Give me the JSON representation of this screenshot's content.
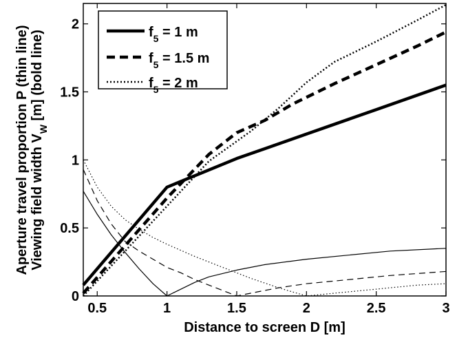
{
  "chart_data": {
    "type": "line",
    "xlabel": "Distance to screen D [m]",
    "ylabel_line1": "Aperture travel proportion P (thin line)",
    "ylabel_line2": "Viewing field width V",
    "ylabel_line2_sub": "W",
    "ylabel_line2_tail": " [m] (bold line)",
    "xlim": [
      0.4,
      3.0
    ],
    "ylim": [
      0,
      2.15
    ],
    "xticks": [
      0.5,
      1,
      1.5,
      2,
      2.5,
      3
    ],
    "xtick_labels": [
      "0.5",
      "1",
      "1.5",
      "2",
      "2.5",
      "3"
    ],
    "yticks": [
      0,
      0.5,
      1,
      1.5,
      2
    ],
    "ytick_labels": [
      "0",
      "0.5",
      "1",
      "1.5",
      "2"
    ],
    "grid": false,
    "legend_position": "top-left",
    "legend": [
      {
        "prefix": "f",
        "sub": "5",
        "suffix": " = 1 m",
        "style": "solid"
      },
      {
        "prefix": "f",
        "sub": "5",
        "suffix": " = 1.5 m",
        "style": "dashed"
      },
      {
        "prefix": "f",
        "sub": "5",
        "suffix": " = 2 m",
        "style": "dotted"
      }
    ],
    "series": [
      {
        "group": "V_W",
        "f5": 1,
        "style": "solid",
        "weight": "bold",
        "x": [
          0.4,
          1.0,
          1.5,
          2.0,
          2.5,
          3.0
        ],
        "y": [
          0.08,
          0.8,
          1.01,
          1.19,
          1.37,
          1.55
        ]
      },
      {
        "group": "V_W",
        "f5": 1.5,
        "style": "dashed",
        "weight": "bold",
        "x": [
          0.4,
          0.7,
          1.0,
          1.3,
          1.5,
          1.7,
          1.9,
          2.2,
          2.5,
          2.8,
          3.0
        ],
        "y": [
          0.02,
          0.37,
          0.72,
          1.04,
          1.2,
          1.29,
          1.41,
          1.56,
          1.7,
          1.84,
          1.94
        ]
      },
      {
        "group": "V_W",
        "f5": 2,
        "style": "dotted",
        "weight": "bold",
        "x": [
          0.4,
          0.7,
          1.0,
          1.3,
          1.6,
          1.8,
          2.0,
          2.2,
          2.5,
          2.8,
          3.0
        ],
        "y": [
          0.0,
          0.33,
          0.66,
          0.99,
          1.21,
          1.38,
          1.57,
          1.72,
          1.87,
          2.03,
          2.14
        ]
      },
      {
        "group": "P",
        "f5": 1,
        "style": "solid",
        "weight": "thin",
        "x": [
          0.4,
          0.5,
          0.6,
          0.7,
          0.8,
          0.9,
          1.0,
          1.1,
          1.2,
          1.3,
          1.5,
          1.7,
          2.0,
          2.3,
          2.6,
          3.0
        ],
        "y": [
          0.77,
          0.6,
          0.45,
          0.32,
          0.2,
          0.09,
          0.0,
          0.05,
          0.1,
          0.14,
          0.19,
          0.23,
          0.27,
          0.3,
          0.33,
          0.35
        ]
      },
      {
        "group": "P",
        "f5": 1.5,
        "style": "dashed",
        "weight": "thin",
        "x": [
          0.4,
          0.5,
          0.6,
          0.7,
          0.8,
          0.9,
          1.0,
          1.1,
          1.2,
          1.3,
          1.4,
          1.5,
          1.6,
          1.8,
          2.0,
          2.3,
          2.6,
          3.0
        ],
        "y": [
          0.93,
          0.7,
          0.53,
          0.4,
          0.33,
          0.27,
          0.21,
          0.17,
          0.12,
          0.08,
          0.04,
          0.0,
          0.02,
          0.06,
          0.09,
          0.12,
          0.15,
          0.18
        ]
      },
      {
        "group": "P",
        "f5": 2,
        "style": "dotted",
        "weight": "thin",
        "x": [
          0.4,
          0.5,
          0.6,
          0.7,
          0.8,
          0.9,
          1.0,
          1.2,
          1.4,
          1.6,
          1.8,
          1.9,
          2.0,
          2.2,
          2.4,
          2.6,
          2.8,
          3.0
        ],
        "y": [
          1.0,
          0.8,
          0.66,
          0.56,
          0.49,
          0.43,
          0.38,
          0.29,
          0.21,
          0.13,
          0.06,
          0.03,
          0.0,
          0.02,
          0.04,
          0.06,
          0.08,
          0.09
        ]
      }
    ]
  }
}
